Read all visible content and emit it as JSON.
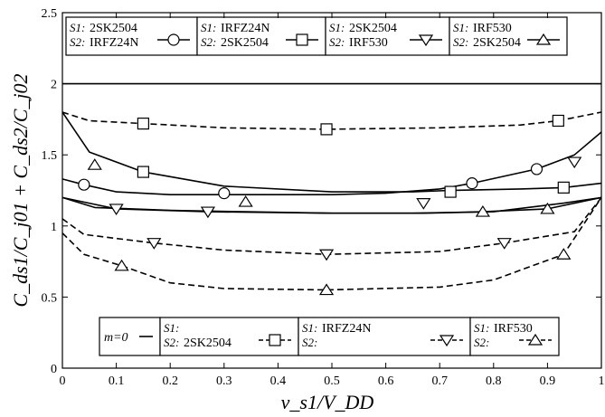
{
  "chart_data": {
    "type": "line",
    "xlabel": "v_s1/V_DD",
    "ylabel": "C_ds1/C_j01 + C_ds2/C_j02",
    "xlim": [
      0,
      1
    ],
    "ylim": [
      0,
      2.5
    ],
    "x_ticks": [
      "0",
      "0.1",
      "0.2",
      "0.3",
      "0.4",
      "0.5",
      "0.6",
      "0.7",
      "0.8",
      "0.9",
      "1"
    ],
    "y_ticks": [
      "0",
      "0.5",
      "1",
      "1.5",
      "2",
      "2.5"
    ],
    "grid": false,
    "legend_top": [
      {
        "s1": "2SK2504",
        "s2": "IRFZ24N",
        "marker": "circle",
        "dash": false
      },
      {
        "s1": "IRFZ24N",
        "s2": "2SK2504",
        "marker": "square",
        "dash": false
      },
      {
        "s1": "2SK2504",
        "s2": "IRF530",
        "marker": "tri-down",
        "dash": false
      },
      {
        "s1": "IRF530",
        "s2": "2SK2504",
        "marker": "tri-up",
        "dash": false
      }
    ],
    "legend_bottom": [
      {
        "label": "m=0",
        "marker": "none",
        "dash": false
      },
      {
        "s1": "",
        "s2": "2SK2504",
        "marker": "square",
        "dash": true
      },
      {
        "s1": "IRFZ24N",
        "s2": "",
        "marker": "tri-down",
        "dash": true
      },
      {
        "s1": "IRF530",
        "s2": "",
        "marker": "tri-up",
        "dash": true
      }
    ],
    "series": [
      {
        "dash": false,
        "marker": "none",
        "x": [
          0,
          1
        ],
        "y": [
          2.0,
          2.0
        ]
      },
      {
        "dash": false,
        "marker": "circle",
        "x": [
          0,
          0.04,
          0.1,
          0.2,
          0.3,
          0.4,
          0.5,
          0.6,
          0.7,
          0.76,
          0.88,
          0.95,
          1.0
        ],
        "y": [
          1.33,
          1.29,
          1.24,
          1.22,
          1.22,
          1.22,
          1.22,
          1.23,
          1.26,
          1.3,
          1.4,
          1.5,
          1.66
        ]
      },
      {
        "dash": false,
        "marker": "square",
        "x": [
          0,
          0.05,
          0.15,
          0.3,
          0.5,
          0.65,
          0.72,
          0.85,
          0.93,
          1.0
        ],
        "y": [
          1.8,
          1.52,
          1.38,
          1.28,
          1.24,
          1.24,
          1.25,
          1.26,
          1.27,
          1.3
        ]
      },
      {
        "dash": false,
        "marker": "tri-down",
        "x": [
          0,
          0.1,
          0.27,
          0.5,
          0.67,
          0.8,
          0.93,
          1.0
        ],
        "y": [
          1.2,
          1.12,
          1.1,
          1.09,
          1.09,
          1.1,
          1.16,
          1.2
        ]
      },
      {
        "dash": false,
        "marker": "tri-up",
        "x": [
          0,
          0.06,
          0.2,
          0.34,
          0.5,
          0.65,
          0.78,
          0.9,
          1.0
        ],
        "y": [
          1.2,
          1.13,
          1.11,
          1.1,
          1.09,
          1.09,
          1.1,
          1.12,
          1.2
        ]
      },
      {
        "dash": true,
        "marker": "square",
        "x": [
          0,
          0.05,
          0.15,
          0.3,
          0.49,
          0.7,
          0.85,
          0.92,
          1.0
        ],
        "y": [
          1.8,
          1.74,
          1.72,
          1.69,
          1.68,
          1.69,
          1.71,
          1.74,
          1.8
        ]
      },
      {
        "dash": true,
        "marker": "tri-down",
        "x": [
          0,
          0.04,
          0.17,
          0.3,
          0.49,
          0.7,
          0.82,
          0.95,
          1.0
        ],
        "y": [
          1.05,
          0.94,
          0.88,
          0.83,
          0.8,
          0.82,
          0.88,
          0.96,
          1.2
        ]
      },
      {
        "dash": true,
        "marker": "tri-up",
        "x": [
          0,
          0.04,
          0.11,
          0.2,
          0.3,
          0.49,
          0.7,
          0.8,
          0.93,
          1.0
        ],
        "y": [
          0.95,
          0.8,
          0.72,
          0.6,
          0.56,
          0.55,
          0.57,
          0.62,
          0.8,
          1.2
        ]
      }
    ],
    "markers": [
      {
        "marker": "circle",
        "x": 0.04,
        "y": 1.29
      },
      {
        "marker": "circle",
        "x": 0.3,
        "y": 1.23
      },
      {
        "marker": "circle",
        "x": 0.76,
        "y": 1.3
      },
      {
        "marker": "circle",
        "x": 0.88,
        "y": 1.4
      },
      {
        "marker": "square",
        "x": 0.15,
        "y": 1.38
      },
      {
        "marker": "square",
        "x": 0.72,
        "y": 1.24
      },
      {
        "marker": "square",
        "x": 0.93,
        "y": 1.27
      },
      {
        "marker": "square",
        "x": 0.15,
        "y": 1.72
      },
      {
        "marker": "square",
        "x": 0.49,
        "y": 1.68
      },
      {
        "marker": "square",
        "x": 0.92,
        "y": 1.74
      },
      {
        "marker": "tri-down",
        "x": 0.1,
        "y": 1.12
      },
      {
        "marker": "tri-down",
        "x": 0.27,
        "y": 1.1
      },
      {
        "marker": "tri-down",
        "x": 0.67,
        "y": 1.16
      },
      {
        "marker": "tri-down",
        "x": 0.95,
        "y": 1.45
      },
      {
        "marker": "tri-down",
        "x": 0.17,
        "y": 0.88
      },
      {
        "marker": "tri-down",
        "x": 0.49,
        "y": 0.8
      },
      {
        "marker": "tri-down",
        "x": 0.82,
        "y": 0.88
      },
      {
        "marker": "tri-up",
        "x": 0.06,
        "y": 1.43
      },
      {
        "marker": "tri-up",
        "x": 0.34,
        "y": 1.17
      },
      {
        "marker": "tri-up",
        "x": 0.78,
        "y": 1.1
      },
      {
        "marker": "tri-up",
        "x": 0.9,
        "y": 1.12
      },
      {
        "marker": "tri-up",
        "x": 0.11,
        "y": 0.72
      },
      {
        "marker": "tri-up",
        "x": 0.49,
        "y": 0.55
      },
      {
        "marker": "tri-up",
        "x": 0.93,
        "y": 0.8
      }
    ]
  }
}
